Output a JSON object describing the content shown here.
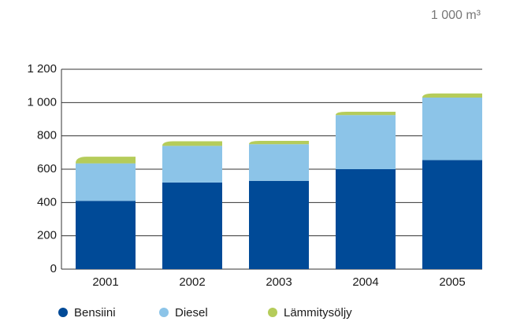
{
  "chart_data": {
    "type": "stacked_bar",
    "unit_label": "1 000 m³",
    "categories": [
      "2001",
      "2002",
      "2003",
      "2004",
      "2005"
    ],
    "series": [
      {
        "name": "Bensiini",
        "color": "#004a97",
        "values": [
          410,
          520,
          530,
          600,
          655
        ]
      },
      {
        "name": "Diesel",
        "color": "#8cc4e8",
        "values": [
          225,
          220,
          220,
          325,
          375
        ]
      },
      {
        "name": "Lämmitysöljy",
        "color": "#b5cc5a",
        "values": [
          40,
          28,
          20,
          20,
          25
        ]
      }
    ],
    "ylim": [
      0,
      1200
    ],
    "yticks": [
      0,
      200,
      400,
      600,
      800,
      {
        "value": 1000,
        "label": "1 000"
      },
      {
        "value": 1200,
        "label": "1 200"
      }
    ],
    "grid": true
  }
}
